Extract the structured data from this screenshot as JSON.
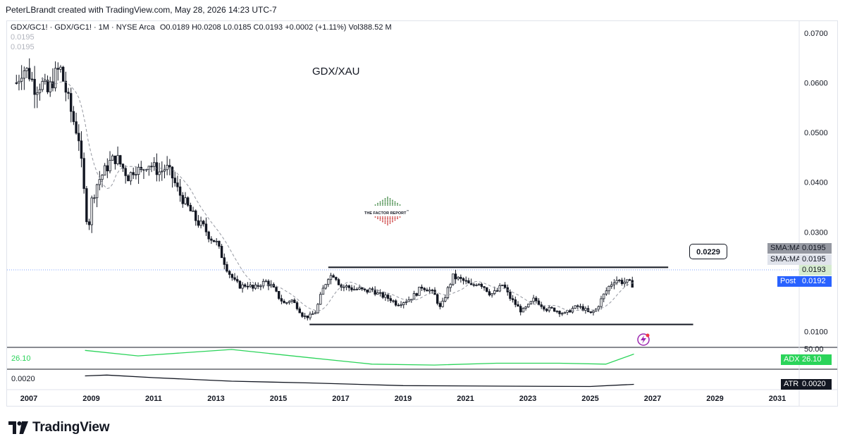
{
  "header": {
    "text": "PeterLBrandt created with TradingView.com, May 28, 2026 14:23 UTC-7"
  },
  "legend": {
    "symbol": "GDX/GC1! · GDX/GC1! · 1M · NYSE Arca",
    "ohlc": "O0.0189  H0.0208  L0.0185  C0.0193  +0.0002 (+1.11%)  Vol388.52 M",
    "sub_values": [
      "0.0195",
      "0.0195"
    ]
  },
  "watermark": {
    "name": "THE FACTOR REPORT",
    "mark": "™"
  },
  "tags": {
    "sma1_label": "SMA:MA",
    "sma1_value": "0.0195",
    "sma2_label": "SMA:MA",
    "sma2_value": "0.0195",
    "last_value": "0.0193",
    "post_label": "Post",
    "post_value": "0.0192",
    "callout_value": "0.0229",
    "adx_label": "ADX",
    "adx_value": "26.10",
    "atr_label": "ATR",
    "atr_value": "0.0020",
    "adx_axis_top": "50.00"
  },
  "panes": {
    "adx_value": "26.10",
    "atr_value": "0.0020"
  },
  "brand": {
    "logo_text": "TradingView"
  },
  "colors": {
    "candle": "#131722",
    "adx_line": "#2bd45a",
    "atr_line": "#131722",
    "post_tag": "#2962ff",
    "last_price_tag": "#d6ecd0",
    "sma_tag_dark": "#9598a1",
    "sma_tag_light": "#e0e3eb"
  },
  "chart_data": {
    "type": "candlestick",
    "title": "GDX/XAU",
    "x_ticks": [
      "2007",
      "2009",
      "2011",
      "2013",
      "2015",
      "2017",
      "2019",
      "2021",
      "2023",
      "2025",
      "2027",
      "2029",
      "2031"
    ],
    "y_ticks": [
      "0.0700",
      "0.0600",
      "0.0500",
      "0.0400",
      "0.0300",
      "0.0100"
    ],
    "x_range": [
      2006.3,
      2031.7
    ],
    "y_range": [
      0.0068,
      0.0724
    ],
    "series_close": [
      [
        2006.6,
        0.06
      ],
      [
        2006.8,
        0.063
      ],
      [
        2007.0,
        0.062
      ],
      [
        2007.2,
        0.059
      ],
      [
        2007.4,
        0.06
      ],
      [
        2007.6,
        0.058
      ],
      [
        2007.8,
        0.061
      ],
      [
        2008.0,
        0.063
      ],
      [
        2008.2,
        0.058
      ],
      [
        2008.4,
        0.053
      ],
      [
        2008.6,
        0.049
      ],
      [
        2008.8,
        0.036
      ],
      [
        2008.9,
        0.03
      ],
      [
        2009.0,
        0.036
      ],
      [
        2009.2,
        0.04
      ],
      [
        2009.4,
        0.042
      ],
      [
        2009.6,
        0.044
      ],
      [
        2009.8,
        0.045
      ],
      [
        2010.0,
        0.043
      ],
      [
        2010.2,
        0.041
      ],
      [
        2010.4,
        0.043
      ],
      [
        2010.6,
        0.042
      ],
      [
        2010.8,
        0.044
      ],
      [
        2011.0,
        0.043
      ],
      [
        2011.2,
        0.042
      ],
      [
        2011.4,
        0.043
      ],
      [
        2011.6,
        0.041
      ],
      [
        2011.8,
        0.038
      ],
      [
        2012.0,
        0.036
      ],
      [
        2012.2,
        0.034
      ],
      [
        2012.4,
        0.032
      ],
      [
        2012.6,
        0.031
      ],
      [
        2012.8,
        0.029
      ],
      [
        2013.0,
        0.028
      ],
      [
        2013.2,
        0.025
      ],
      [
        2013.4,
        0.022
      ],
      [
        2013.6,
        0.02
      ],
      [
        2013.8,
        0.019
      ],
      [
        2014.0,
        0.0195
      ],
      [
        2014.2,
        0.0185
      ],
      [
        2014.4,
        0.0195
      ],
      [
        2014.6,
        0.02
      ],
      [
        2014.8,
        0.019
      ],
      [
        2015.0,
        0.017
      ],
      [
        2015.2,
        0.0155
      ],
      [
        2015.4,
        0.0165
      ],
      [
        2015.6,
        0.015
      ],
      [
        2015.8,
        0.013
      ],
      [
        2016.0,
        0.013
      ],
      [
        2016.2,
        0.014
      ],
      [
        2016.4,
        0.018
      ],
      [
        2016.6,
        0.021
      ],
      [
        2016.8,
        0.0215
      ],
      [
        2017.0,
        0.019
      ],
      [
        2017.2,
        0.019
      ],
      [
        2017.4,
        0.0185
      ],
      [
        2017.6,
        0.0185
      ],
      [
        2017.8,
        0.018
      ],
      [
        2018.0,
        0.0185
      ],
      [
        2018.2,
        0.0175
      ],
      [
        2018.4,
        0.017
      ],
      [
        2018.6,
        0.0165
      ],
      [
        2018.8,
        0.0155
      ],
      [
        2019.0,
        0.016
      ],
      [
        2019.2,
        0.0165
      ],
      [
        2019.4,
        0.0175
      ],
      [
        2019.6,
        0.019
      ],
      [
        2019.8,
        0.0185
      ],
      [
        2020.0,
        0.0175
      ],
      [
        2020.2,
        0.0145
      ],
      [
        2020.4,
        0.018
      ],
      [
        2020.6,
        0.021
      ],
      [
        2020.8,
        0.0205
      ],
      [
        2021.0,
        0.02
      ],
      [
        2021.2,
        0.019
      ],
      [
        2021.4,
        0.02
      ],
      [
        2021.6,
        0.019
      ],
      [
        2021.8,
        0.0175
      ],
      [
        2022.0,
        0.018
      ],
      [
        2022.2,
        0.0195
      ],
      [
        2022.4,
        0.017
      ],
      [
        2022.6,
        0.0155
      ],
      [
        2022.8,
        0.014
      ],
      [
        2023.0,
        0.015
      ],
      [
        2023.2,
        0.0165
      ],
      [
        2023.4,
        0.0155
      ],
      [
        2023.6,
        0.0145
      ],
      [
        2023.8,
        0.0145
      ],
      [
        2024.0,
        0.014
      ],
      [
        2024.2,
        0.0135
      ],
      [
        2024.4,
        0.0145
      ],
      [
        2024.6,
        0.015
      ],
      [
        2024.8,
        0.0145
      ],
      [
        2025.0,
        0.0135
      ],
      [
        2025.2,
        0.0145
      ],
      [
        2025.4,
        0.017
      ],
      [
        2025.6,
        0.019
      ],
      [
        2025.8,
        0.0205
      ],
      [
        2026.0,
        0.02
      ],
      [
        2026.2,
        0.0199
      ],
      [
        2026.4,
        0.0193
      ]
    ],
    "levels": [
      {
        "name": "resistance",
        "from": 2016.6,
        "to": 2027.5,
        "value": 0.0229
      },
      {
        "name": "support",
        "from": 2016.0,
        "to": 2028.3,
        "value": 0.0114
      }
    ],
    "adx": [
      [
        2008.8,
        0.95
      ],
      [
        2010.5,
        0.65
      ],
      [
        2013.5,
        1.0
      ],
      [
        2016.0,
        0.55
      ],
      [
        2018.0,
        0.2
      ],
      [
        2020.0,
        0.15
      ],
      [
        2022.0,
        0.25
      ],
      [
        2024.0,
        0.25
      ],
      [
        2025.5,
        0.2
      ],
      [
        2026.4,
        0.75
      ]
    ],
    "atr": [
      [
        2008.8,
        0.7
      ],
      [
        2009.5,
        0.75
      ],
      [
        2011.0,
        0.6
      ],
      [
        2013.5,
        0.4
      ],
      [
        2016.0,
        0.3
      ],
      [
        2019.0,
        0.15
      ],
      [
        2022.0,
        0.12
      ],
      [
        2025.0,
        0.1
      ],
      [
        2026.4,
        0.22
      ]
    ],
    "grid": false
  }
}
